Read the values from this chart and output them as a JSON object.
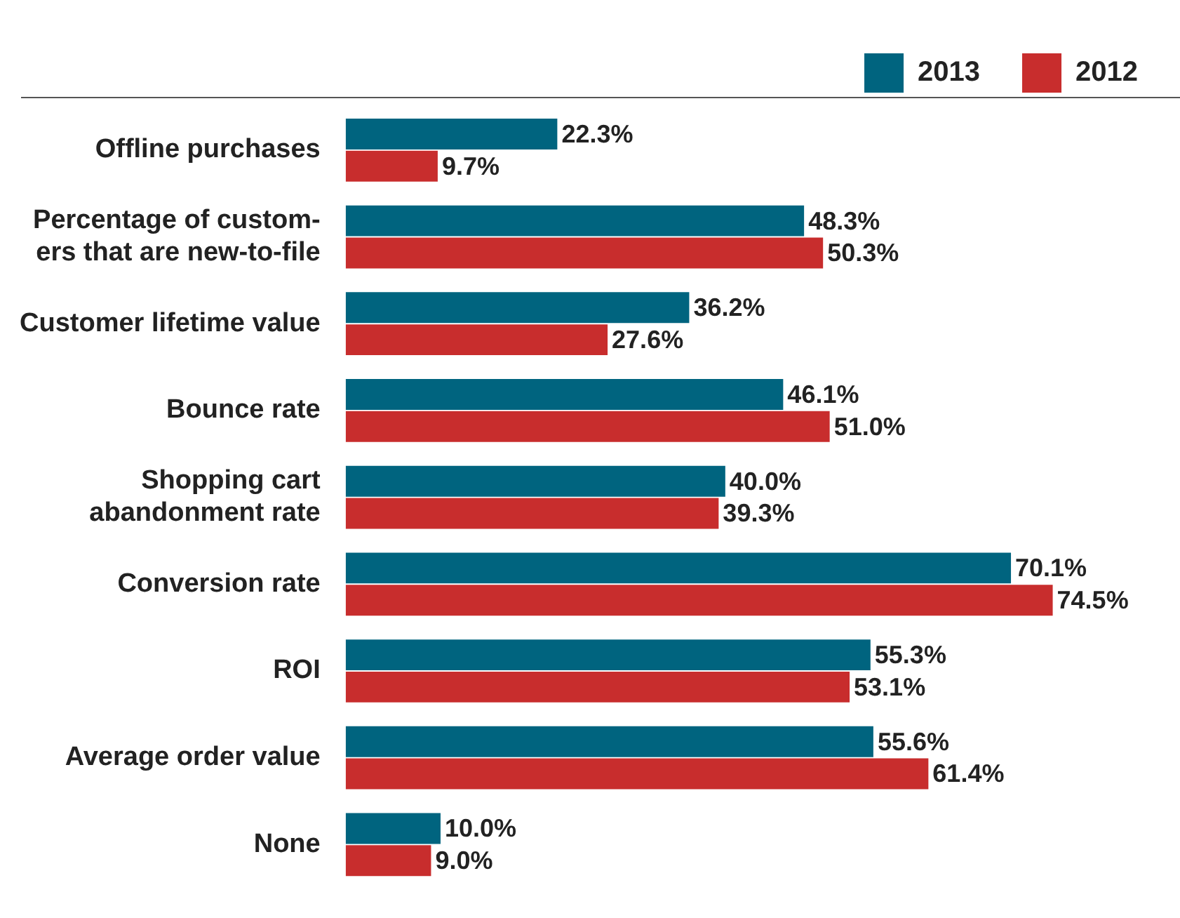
{
  "chart_data": {
    "type": "bar",
    "orientation": "horizontal",
    "legend": "top right",
    "categories": [
      "Offline purchases",
      "Percentage of custom-\ners that are new-to-file",
      "Customer lifetime value",
      "Bounce rate",
      "Shopping cart\nabandonment rate",
      "Conversion rate",
      "ROI",
      "Average order value",
      "None"
    ],
    "series": [
      {
        "name": "2013",
        "color": "#00647f",
        "values": [
          22.3,
          48.3,
          36.2,
          46.1,
          40.0,
          70.1,
          55.3,
          55.6,
          10.0
        ],
        "value_labels": [
          "22.3%",
          "48.3%",
          "36.2%",
          "46.1%",
          "40.0%",
          "70.1%",
          "55.3%",
          "55.6%",
          "10.0%"
        ]
      },
      {
        "name": "2012",
        "color": "#c82d2d",
        "values": [
          9.7,
          50.3,
          27.6,
          51.0,
          39.3,
          74.5,
          53.1,
          61.4,
          9.0
        ],
        "value_labels": [
          "9.7%",
          "50.3%",
          "27.6%",
          "51.0%",
          "39.3%",
          "74.5%",
          "53.1%",
          "61.4%",
          "9.0%"
        ]
      }
    ]
  }
}
